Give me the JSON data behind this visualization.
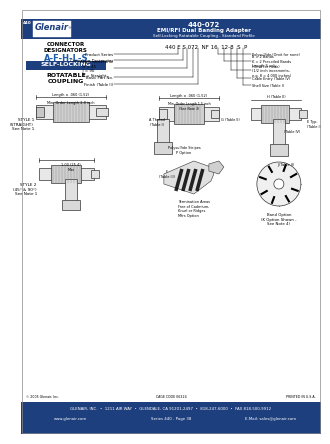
{
  "title_number": "440-072",
  "title_line1": "EMI/RFI Dual Banding Adapter",
  "title_line2": "Self-Locking Rotatable Coupling - Standard Profile",
  "header_bg": "#1e3f7e",
  "header_text_color": "#ffffff",
  "logo_bg": "#1e3f7e",
  "logo_text": "Glenair",
  "series_label": "440",
  "connector_title": "CONNECTOR\nDESIGNATORS",
  "connector_designators": "A-F-H-L-S",
  "self_locking": "SELF-LOCKING",
  "rotatable": "ROTATABLE\nCOUPLING",
  "part_number_label": "440 E S 072  NF 16  12-8  S  P",
  "left_fields": [
    "Product Series",
    "Connector Designator",
    "Angle and Profile\n  H = 45\n  J = 90\n  S = Straight",
    "Basic Part No.",
    "Finish (Table II)"
  ],
  "right_fields": [
    "Polysulfide (Omit for none)",
    "B = 2 Bands\nK = 2 Precoiled Bands\n(Omit for none)",
    "Length S only\n(1/2 inch increments,\ne.g. 8 = 4.000 inches)",
    "Cable Entry (Table IV)",
    "Shell Size (Table I)"
  ],
  "style1_label": "STYLE 1\n(STRAIGHT)\nSee Note 1",
  "style2_label": "STYLE 2\n(45° & 90°)\nSee Note 1",
  "band_option": "Band Option\n(K Option Shown -\nSee Note 4)",
  "polysulfide": "Polysulfide Stripes\nP Option",
  "termination": "Termination Areas\nFree of Cadmium,\nKnurl or Ridges\nMfrs Option",
  "footer_company": "GLENAIR, INC.  •  1211 AIR WAY  •  GLENDALE, CA 91201-2497  •  818-247-6000  •  FAX 818-500-9912",
  "footer_web": "www.glenair.com",
  "footer_series": "Series 440 - Page 38",
  "footer_email": "E-Mail: sales@glenair.com",
  "footer_bg": "#1e3f7e",
  "body_bg": "#ffffff",
  "page_bg": "#ffffff",
  "copyright": "© 2005 Glenair, Inc.",
  "cage_code": "CAGE CODE 06324",
  "printed": "PRINTED IN U.S.A."
}
